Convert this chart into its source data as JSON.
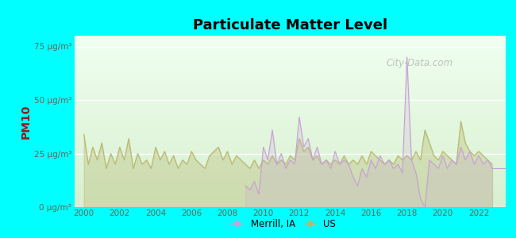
{
  "title": "Particulate Matter Level",
  "ylabel": "PM10",
  "background_color": "#00ffff",
  "merrill_color": "#c8a0d8",
  "us_color": "#b8b870",
  "ylim": [
    0,
    80
  ],
  "yticks": [
    0,
    25,
    50,
    75
  ],
  "ytick_labels": [
    "0 μg/m³",
    "25 μg/m³",
    "50 μg/m³",
    "75 μg/m³"
  ],
  "xmin": 1999.5,
  "xmax": 2023.5,
  "watermark": "City-Data.com",
  "legend_merrill": "Merrill, IA",
  "legend_us": "US",
  "us_x": [
    2000.0,
    2000.25,
    2000.5,
    2000.75,
    2001.0,
    2001.25,
    2001.5,
    2001.75,
    2002.0,
    2002.25,
    2002.5,
    2002.75,
    2003.0,
    2003.25,
    2003.5,
    2003.75,
    2004.0,
    2004.25,
    2004.5,
    2004.75,
    2005.0,
    2005.25,
    2005.5,
    2005.75,
    2006.0,
    2006.25,
    2006.5,
    2006.75,
    2007.0,
    2007.25,
    2007.5,
    2007.75,
    2008.0,
    2008.25,
    2008.5,
    2008.75,
    2009.0,
    2009.25,
    2009.5,
    2009.75,
    2010.0,
    2010.25,
    2010.5,
    2010.75,
    2011.0,
    2011.25,
    2011.5,
    2011.75,
    2012.0,
    2012.25,
    2012.5,
    2012.75,
    2013.0,
    2013.25,
    2013.5,
    2013.75,
    2014.0,
    2014.25,
    2014.5,
    2014.75,
    2015.0,
    2015.25,
    2015.5,
    2015.75,
    2016.0,
    2016.25,
    2016.5,
    2016.75,
    2017.0,
    2017.25,
    2017.5,
    2017.75,
    2018.0,
    2018.25,
    2018.5,
    2018.75,
    2019.0,
    2019.25,
    2019.5,
    2019.75,
    2020.0,
    2020.25,
    2020.5,
    2020.75,
    2021.0,
    2021.25,
    2021.5,
    2021.75,
    2022.0,
    2022.25,
    2022.5,
    2022.75
  ],
  "us_y": [
    34,
    20,
    28,
    22,
    30,
    18,
    25,
    20,
    28,
    22,
    32,
    18,
    25,
    20,
    22,
    18,
    28,
    22,
    26,
    20,
    24,
    18,
    22,
    20,
    26,
    22,
    20,
    18,
    24,
    26,
    28,
    22,
    26,
    20,
    24,
    22,
    20,
    18,
    22,
    18,
    22,
    20,
    24,
    20,
    22,
    20,
    24,
    22,
    32,
    26,
    28,
    22,
    24,
    20,
    22,
    20,
    22,
    20,
    24,
    20,
    22,
    20,
    24,
    20,
    26,
    24,
    22,
    20,
    22,
    20,
    24,
    22,
    24,
    22,
    26,
    22,
    36,
    30,
    24,
    22,
    26,
    24,
    22,
    20,
    40,
    30,
    26,
    24,
    26,
    24,
    22,
    20
  ],
  "merrill_x": [
    2009.0,
    2009.25,
    2009.5,
    2009.75,
    2010.0,
    2010.25,
    2010.5,
    2010.75,
    2011.0,
    2011.25,
    2011.5,
    2011.75,
    2012.0,
    2012.25,
    2012.5,
    2012.75,
    2013.0,
    2013.25,
    2013.5,
    2013.75,
    2014.0,
    2014.25,
    2014.5,
    2014.75,
    2015.0,
    2015.25,
    2015.5,
    2015.75,
    2016.0,
    2016.25,
    2016.5,
    2016.75,
    2017.0,
    2017.25,
    2017.5,
    2017.75,
    2018.0,
    2018.25,
    2018.5,
    2018.75,
    2019.0,
    2019.25,
    2019.5,
    2019.75,
    2020.0,
    2020.25,
    2020.5,
    2020.75,
    2021.0,
    2021.25,
    2021.5,
    2021.75,
    2022.0,
    2022.25,
    2022.5,
    2022.75
  ],
  "merrill_y": [
    10,
    8,
    12,
    6,
    28,
    22,
    36,
    20,
    25,
    18,
    22,
    20,
    42,
    28,
    32,
    22,
    28,
    20,
    22,
    18,
    26,
    20,
    22,
    20,
    14,
    10,
    18,
    14,
    22,
    18,
    24,
    20,
    22,
    18,
    20,
    16,
    70,
    22,
    16,
    4,
    0,
    22,
    20,
    18,
    24,
    18,
    22,
    20,
    28,
    22,
    26,
    20,
    24,
    20,
    22,
    18
  ]
}
